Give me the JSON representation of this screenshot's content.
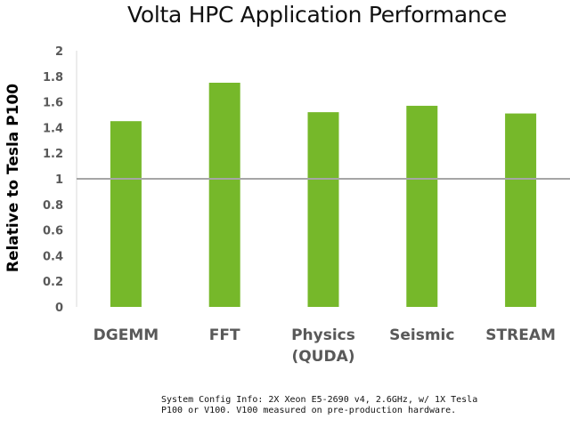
{
  "chart_data": {
    "type": "bar",
    "title": "Volta HPC Application Performance",
    "ylabel": "Relative to Tesla P100",
    "xlabel": "",
    "categories": [
      "DGEMM",
      "FFT",
      "Physics\n(QUDA)",
      "Seismic",
      "STREAM"
    ],
    "values": [
      1.45,
      1.75,
      1.52,
      1.57,
      1.51
    ],
    "ylim": [
      0,
      2
    ],
    "yticks": [
      "0",
      "0.2",
      "0.4",
      "0.6",
      "0.8",
      "1",
      "1.2",
      "1.4",
      "1.6",
      "1.8",
      "2"
    ],
    "reference_line": 1,
    "grid": false,
    "legend": "none",
    "colors": {
      "bar": "#76b82a",
      "reference_line": "#a6a6a6",
      "axis": "#d9d9d9",
      "tick_text": "#595959"
    }
  },
  "footnote": "System Config Info: 2X Xeon E5-2690 v4, 2.6GHz, w/ 1X Tesla P100 or V100. V100 measured on pre-production hardware."
}
